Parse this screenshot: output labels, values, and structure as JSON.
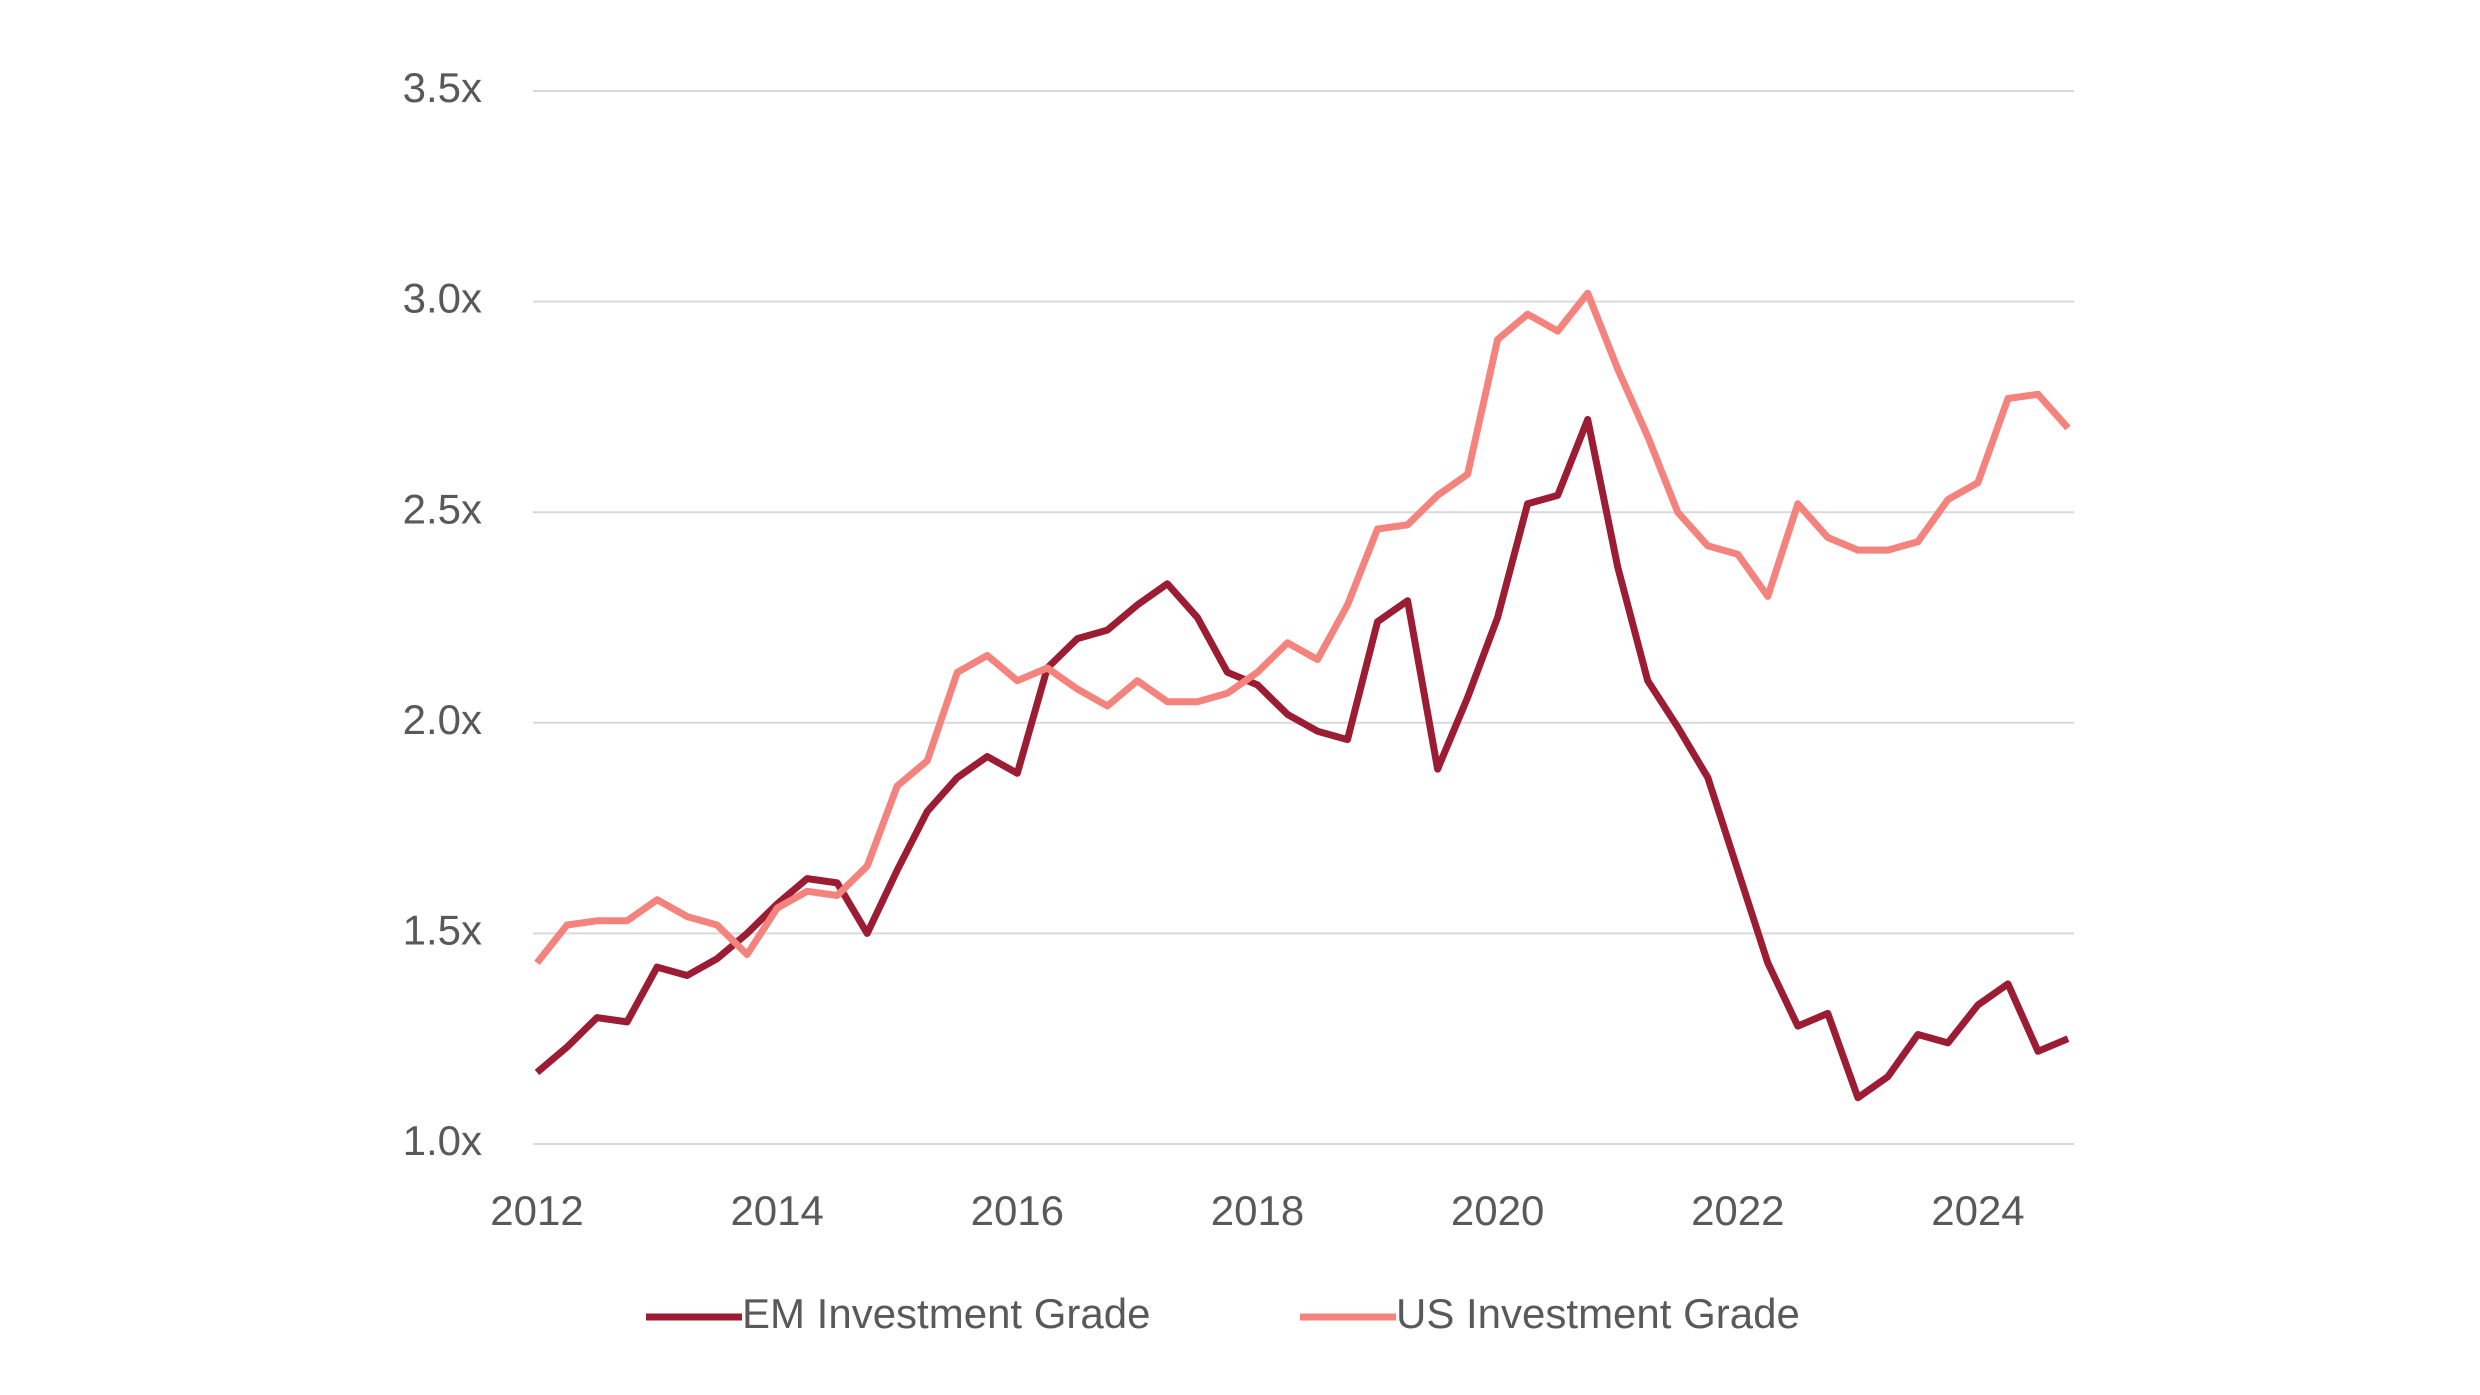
{
  "chart_data": {
    "type": "line",
    "x": [
      2012,
      2012.25,
      2012.5,
      2012.75,
      2013,
      2013.25,
      2013.5,
      2013.75,
      2014,
      2014.25,
      2014.5,
      2014.75,
      2015,
      2015.25,
      2015.5,
      2015.75,
      2016,
      2016.25,
      2016.5,
      2016.75,
      2017,
      2017.25,
      2017.5,
      2017.75,
      2018,
      2018.25,
      2018.5,
      2018.75,
      2019,
      2019.25,
      2019.5,
      2019.75,
      2020,
      2020.25,
      2020.5,
      2020.75,
      2021,
      2021.25,
      2021.5,
      2021.75,
      2022,
      2022.25,
      2022.5,
      2022.75,
      2023,
      2023.25,
      2023.5,
      2023.75,
      2024,
      2024.25,
      2024.5,
      2024.75
    ],
    "series": [
      {
        "name": "EM Investment Grade",
        "color": "#9b1c33",
        "values": [
          1.17,
          1.23,
          1.3,
          1.29,
          1.42,
          1.4,
          1.44,
          1.5,
          1.57,
          1.63,
          1.62,
          1.5,
          1.65,
          1.79,
          1.87,
          1.92,
          1.88,
          2.13,
          2.2,
          2.22,
          2.28,
          2.33,
          2.25,
          2.12,
          2.09,
          2.02,
          1.98,
          1.96,
          2.24,
          2.29,
          1.89,
          2.06,
          2.25,
          2.52,
          2.54,
          2.72,
          2.37,
          2.1,
          1.99,
          1.87,
          1.65,
          1.43,
          1.28,
          1.31,
          1.11,
          1.16,
          1.26,
          1.24,
          1.33,
          1.38,
          1.22,
          1.25
        ]
      },
      {
        "name": "US Investment Grade",
        "color": "#f4837d",
        "values": [
          1.43,
          1.52,
          1.53,
          1.53,
          1.58,
          1.54,
          1.52,
          1.45,
          1.56,
          1.6,
          1.59,
          1.66,
          1.85,
          1.91,
          2.12,
          2.16,
          2.1,
          2.13,
          2.08,
          2.04,
          2.1,
          2.05,
          2.05,
          2.07,
          2.12,
          2.19,
          2.15,
          2.28,
          2.46,
          2.47,
          2.54,
          2.59,
          2.91,
          2.97,
          2.93,
          3.02,
          2.84,
          2.68,
          2.5,
          2.42,
          2.4,
          2.3,
          2.52,
          2.44,
          2.41,
          2.41,
          2.43,
          2.53,
          2.57,
          2.77,
          2.78,
          2.7
        ]
      }
    ],
    "xlim": [
      2012,
      2024.8
    ],
    "xticks": [
      2012,
      2014,
      2016,
      2018,
      2020,
      2022,
      2024
    ],
    "ylim": [
      1.0,
      3.5
    ],
    "yticks": [
      {
        "value": 1.0,
        "label": "1.0x"
      },
      {
        "value": 1.5,
        "label": "1.5x"
      },
      {
        "value": 2.0,
        "label": "2.0x"
      },
      {
        "value": 2.5,
        "label": "2.5x"
      },
      {
        "value": 3.0,
        "label": "3.0x"
      },
      {
        "value": 3.5,
        "label": "3.5x"
      }
    ],
    "grid": true,
    "legend": "bottom"
  }
}
